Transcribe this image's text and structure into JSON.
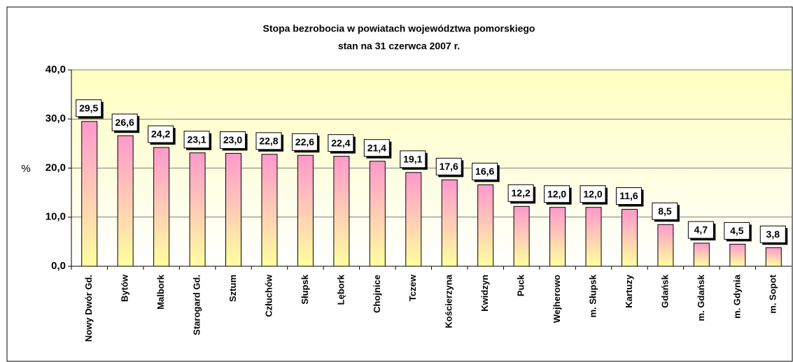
{
  "chart_data": {
    "type": "bar",
    "title": "Stopa bezrobocia w powiatach województwa pomorskiego",
    "subtitle": "stan na 31 czerwca 2007 r.",
    "y_label": "%",
    "categories": [
      "Nowy Dwór Gd.",
      "Bytów",
      "Malbork",
      "Starogard Gd.",
      "Sztum",
      "Człuchów",
      "Słupsk",
      "Lębork",
      "Chojnice",
      "Tczew",
      "Kościerzyna",
      "Kwidzyn",
      "Puck",
      "Wejherowo",
      "m. Słupsk",
      "Kartuzy",
      "Gdańsk",
      "m. Gdańsk",
      "m. Gdynia",
      "m. Sopot"
    ],
    "values": [
      29.5,
      26.6,
      24.2,
      23.1,
      23.0,
      22.8,
      22.6,
      22.4,
      21.4,
      19.1,
      17.6,
      16.6,
      12.2,
      12.0,
      12.0,
      11.6,
      8.5,
      4.7,
      4.5,
      3.8
    ],
    "value_labels": [
      "29,5",
      "26,6",
      "24,2",
      "23,1",
      "23,0",
      "22,8",
      "22,6",
      "22,4",
      "21,4",
      "19,1",
      "17,6",
      "16,6",
      "12,2",
      "12,0",
      "12,0",
      "11,6",
      "8,5",
      "4,7",
      "4,5",
      "3,8"
    ],
    "color": "#ff99cc",
    "ylim": [
      0,
      40
    ],
    "yticks": [
      {
        "value": 0,
        "label": "0,0"
      },
      {
        "value": 10,
        "label": "10,0"
      },
      {
        "value": 20,
        "label": "20,0"
      },
      {
        "value": 30,
        "label": "30,0"
      },
      {
        "value": 40,
        "label": "40,0"
      }
    ],
    "grid": true
  }
}
